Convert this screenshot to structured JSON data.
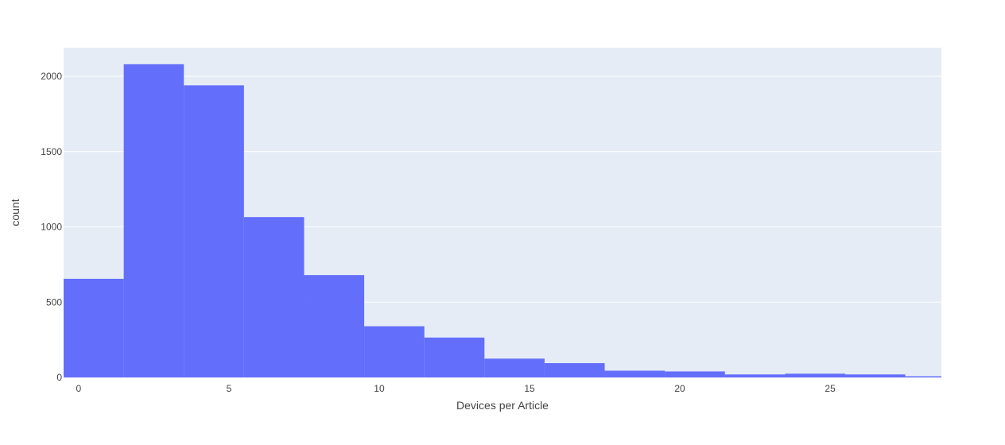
{
  "chart_data": {
    "type": "bar",
    "subtype": "histogram",
    "xlabel": "Devices per Article",
    "ylabel": "count",
    "bins": [
      {
        "x0": -0.5,
        "x1": 1.5,
        "value": 655
      },
      {
        "x0": 1.5,
        "x1": 3.5,
        "value": 2080
      },
      {
        "x0": 3.5,
        "x1": 5.5,
        "value": 1940
      },
      {
        "x0": 5.5,
        "x1": 7.5,
        "value": 1065
      },
      {
        "x0": 7.5,
        "x1": 9.5,
        "value": 680
      },
      {
        "x0": 9.5,
        "x1": 11.5,
        "value": 340
      },
      {
        "x0": 11.5,
        "x1": 13.5,
        "value": 265
      },
      {
        "x0": 13.5,
        "x1": 15.5,
        "value": 125
      },
      {
        "x0": 15.5,
        "x1": 17.5,
        "value": 95
      },
      {
        "x0": 17.5,
        "x1": 19.5,
        "value": 45
      },
      {
        "x0": 19.5,
        "x1": 21.5,
        "value": 40
      },
      {
        "x0": 21.5,
        "x1": 23.5,
        "value": 20
      },
      {
        "x0": 23.5,
        "x1": 25.5,
        "value": 25
      },
      {
        "x0": 25.5,
        "x1": 27.5,
        "value": 20
      },
      {
        "x0": 27.5,
        "x1": 29.5,
        "value": 8
      }
    ],
    "xlim": [
      -0.5,
      28.7
    ],
    "ylim": [
      0,
      2190
    ],
    "xticks": [
      0,
      5,
      10,
      15,
      20,
      25
    ],
    "yticks": [
      0,
      500,
      1000,
      1500,
      2000
    ],
    "xtick_labels": [
      "0",
      "5",
      "10",
      "15",
      "20",
      "25"
    ],
    "ytick_labels": [
      "0",
      "500",
      "1000",
      "1500",
      "2000"
    ],
    "grid": true,
    "colors": {
      "bar": "#636efa",
      "plot_background": "#e5ecf6",
      "grid": "#ffffff"
    }
  }
}
